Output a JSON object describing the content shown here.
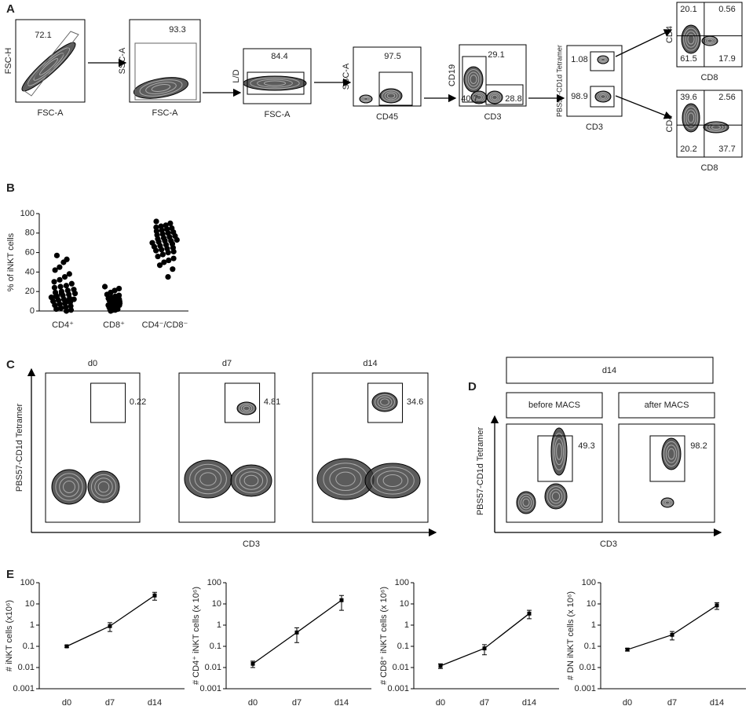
{
  "panel_labels": [
    "A",
    "B",
    "C",
    "D",
    "E"
  ],
  "gating": [
    {
      "ylabel": "FSC-H",
      "xlabel": "FSC-A",
      "gates": [
        72.1
      ]
    },
    {
      "ylabel": "SSC-A",
      "xlabel": "FSC-A",
      "gates": [
        93.3
      ]
    },
    {
      "ylabel": "L/D",
      "xlabel": "FSC-A",
      "gates": [
        84.4
      ]
    },
    {
      "ylabel": "SSC-A",
      "xlabel": "CD45",
      "gates": [
        97.5
      ]
    },
    {
      "ylabel": "CD19",
      "xlabel": "CD3",
      "gates": [
        29.1,
        40.7,
        28.8
      ]
    },
    {
      "ylabel": "PBS57-CD1d Tetramer",
      "xlabel": "CD3",
      "gates": [
        1.08,
        98.9
      ]
    },
    {
      "ylabel": "CD4",
      "xlabel": "CD8",
      "gates": [
        20.1,
        0.56,
        61.5,
        17.9
      ]
    },
    {
      "ylabel": "CD4",
      "xlabel": "CD8",
      "gates": [
        39.6,
        2.56,
        20.2,
        37.7
      ]
    }
  ],
  "panel_c": {
    "ylabel": "PBS57-CD1d Tetramer",
    "xlabel": "CD3",
    "plots": [
      {
        "title": "d0",
        "gate": 0.22
      },
      {
        "title": "d7",
        "gate": 4.81
      },
      {
        "title": "d14",
        "gate": 34.6
      }
    ]
  },
  "panel_d": {
    "header": "d14",
    "ylabel": "PBS57-CD1d Tetramer",
    "xlabel": "CD3",
    "plots": [
      {
        "title": "before MACS",
        "gate": 49.3
      },
      {
        "title": "after MACS",
        "gate": 98.2
      }
    ]
  },
  "chart_data": [
    {
      "type": "strip",
      "ylabel": "% of iNKT cells",
      "categories": [
        "CD4⁺",
        "CD8⁺",
        "CD4⁻/CD8⁻"
      ],
      "ylim": [
        0,
        100
      ],
      "yticks": [
        0,
        20,
        40,
        60,
        80,
        100
      ],
      "color": "#000000",
      "series": [
        {
          "values": [
            57,
            53,
            50,
            45,
            42,
            38,
            35,
            32,
            30,
            28,
            26,
            25,
            24,
            22,
            21,
            20,
            19,
            18,
            17,
            16,
            15,
            14,
            13,
            12,
            11,
            10,
            9,
            8,
            7,
            6,
            5,
            4,
            3,
            2,
            1,
            0,
            18,
            15,
            12,
            10
          ]
        },
        {
          "values": [
            25,
            23,
            21,
            19,
            17,
            16,
            15,
            14,
            13,
            12,
            12,
            11,
            11,
            10,
            10,
            9,
            9,
            8,
            8,
            7,
            7,
            6,
            6,
            5,
            5,
            4,
            4,
            3,
            3,
            2,
            2,
            1,
            1,
            0,
            10,
            9,
            8,
            7,
            6,
            5
          ]
        },
        {
          "values": [
            92,
            90,
            88,
            87,
            86,
            85,
            84,
            83,
            82,
            81,
            80,
            79,
            78,
            77,
            76,
            75,
            74,
            73,
            72,
            72,
            71,
            70,
            69,
            68,
            67,
            66,
            65,
            64,
            63,
            62,
            61,
            60,
            58,
            56,
            54,
            52,
            50,
            47,
            43,
            35
          ]
        }
      ]
    },
    {
      "type": "line",
      "ylabel": "# iNKT cells (x10⁶)",
      "categories": [
        "d0",
        "d7",
        "d14"
      ],
      "log": true,
      "ylim": [
        0.001,
        100
      ],
      "yticks": [
        0.001,
        0.01,
        0.1,
        1,
        10,
        100
      ],
      "color": "#000000",
      "values": [
        0.1,
        0.9,
        25
      ],
      "errors": [
        0.01,
        0.4,
        10
      ]
    },
    {
      "type": "line",
      "ylabel": "# CD4⁺ iNKT cells (x 10⁶)",
      "categories": [
        "d0",
        "d7",
        "d14"
      ],
      "log": true,
      "ylim": [
        0.001,
        100
      ],
      "yticks": [
        0.001,
        0.01,
        0.1,
        1,
        10,
        100
      ],
      "color": "#000000",
      "values": [
        0.015,
        0.45,
        15
      ],
      "errors": [
        0.005,
        0.3,
        10
      ]
    },
    {
      "type": "line",
      "ylabel": "# CD8⁺ iNKT cells (x 10⁶)",
      "categories": [
        "d0",
        "d7",
        "d14"
      ],
      "log": true,
      "ylim": [
        0.001,
        100
      ],
      "yticks": [
        0.001,
        0.01,
        0.1,
        1,
        10,
        100
      ],
      "color": "#000000",
      "values": [
        0.012,
        0.08,
        3.5
      ],
      "errors": [
        0.003,
        0.04,
        1.5
      ]
    },
    {
      "type": "line",
      "ylabel": "# DN iNKT cells (x 10⁶)",
      "categories": [
        "d0",
        "d7",
        "d14"
      ],
      "log": true,
      "ylim": [
        0.001,
        100
      ],
      "yticks": [
        0.001,
        0.01,
        0.1,
        1,
        10,
        100
      ],
      "color": "#000000",
      "values": [
        0.07,
        0.35,
        8.5
      ],
      "errors": [
        0.01,
        0.15,
        3
      ]
    }
  ]
}
